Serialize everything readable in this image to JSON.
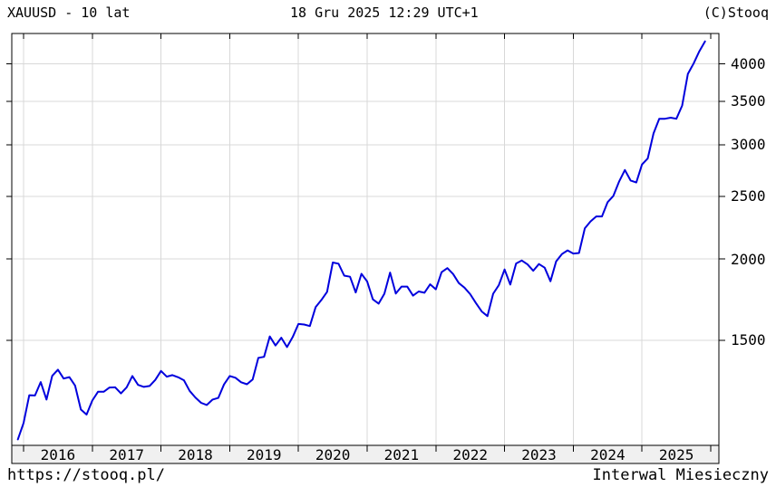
{
  "header": {
    "title": "XAUUSD - 10 lat",
    "timestamp": "18 Gru 2025 12:29 UTC+1",
    "copyright": "(C)Stooq"
  },
  "footer": {
    "url": "https://stooq.pl/",
    "interval": "Interwal Miesieczny"
  },
  "colors": {
    "line": "#0000dd",
    "grid": "#d8d8d8",
    "frame": "#000000",
    "band_fill": "#f0f0f0",
    "background": "#ffffff"
  },
  "chart_data": {
    "type": "line",
    "title": "XAUUSD - 10 lat",
    "symbol": "XAUUSD",
    "interval": "monthly",
    "x_start": "2015-12",
    "x_end": "2025-12",
    "x_tick_labels": [
      "2016",
      "2017",
      "2018",
      "2019",
      "2020",
      "2021",
      "2022",
      "2023",
      "2024",
      "2025"
    ],
    "y_ticks": [
      1500,
      2000,
      2500,
      3000,
      3500,
      4000
    ],
    "y_scale": "log",
    "ylim": [
      1033,
      4468
    ],
    "grid": true,
    "legend": "none",
    "series": [
      {
        "name": "XAUUSD monthly close",
        "values": [
          1055,
          1118,
          1234,
          1233,
          1293,
          1215,
          1322,
          1351,
          1309,
          1316,
          1277,
          1173,
          1152,
          1211,
          1249,
          1249,
          1268,
          1269,
          1242,
          1269,
          1321,
          1280,
          1271,
          1275,
          1303,
          1345,
          1318,
          1325,
          1315,
          1301,
          1253,
          1224,
          1201,
          1192,
          1215,
          1222,
          1282,
          1321,
          1313,
          1292,
          1283,
          1305,
          1409,
          1414,
          1520,
          1472,
          1513,
          1464,
          1517,
          1589,
          1586,
          1577,
          1687,
          1730,
          1781,
          1976,
          1968,
          1886,
          1879,
          1777,
          1898,
          1848,
          1734,
          1708,
          1769,
          1907,
          1770,
          1814,
          1814,
          1757,
          1783,
          1775,
          1829,
          1797,
          1909,
          1937,
          1897,
          1837,
          1807,
          1766,
          1711,
          1661,
          1634,
          1769,
          1824,
          1928,
          1827,
          1969,
          1990,
          1963,
          1919,
          1965,
          1940,
          1849,
          1984,
          2036,
          2063,
          2040,
          2044,
          2230,
          2286,
          2327,
          2327,
          2448,
          2503,
          2635,
          2744,
          2643,
          2625,
          2798,
          2858,
          3124,
          3289,
          3290,
          3303,
          3290,
          3448,
          3859,
          4003,
          4180,
          4330
        ]
      }
    ]
  }
}
